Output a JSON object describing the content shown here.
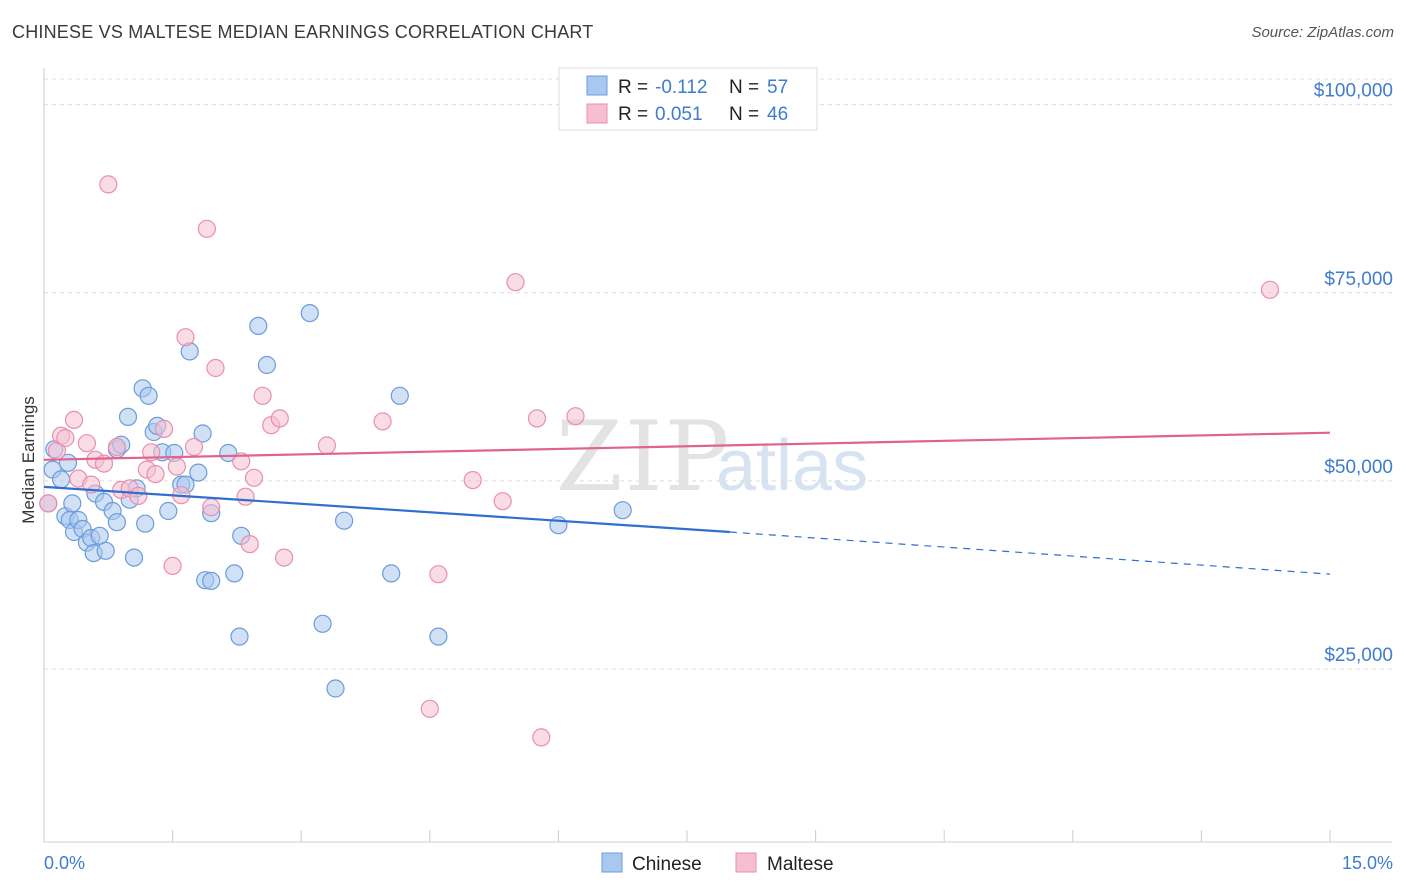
{
  "title": "CHINESE VS MALTESE MEDIAN EARNINGS CORRELATION CHART",
  "source": "Source: ZipAtlas.com",
  "watermark": {
    "part1": "ZIP",
    "part2": "atlas"
  },
  "colors": {
    "chinese_fill": "#a9c8ef",
    "chinese_stroke": "#6b9bdd",
    "chinese_line": "#2f6fcf",
    "maltese_fill": "#f6bfd1",
    "maltese_stroke": "#e98fae",
    "maltese_line": "#e0628d",
    "tick_text": "#3f7bd0",
    "grid": "#dddddd"
  },
  "chart_data": {
    "type": "scatter",
    "title": "CHINESE VS MALTESE MEDIAN EARNINGS CORRELATION CHART",
    "xlabel": "",
    "ylabel": "Median Earnings",
    "xlim": [
      0,
      15
    ],
    "ylim": [
      2000,
      107000
    ],
    "x_tick_labels": {
      "left": "0.0%",
      "right": "15.0%"
    },
    "y_ticks": [
      {
        "value": 25000,
        "label": "$25,000"
      },
      {
        "value": 50000,
        "label": "$50,000"
      },
      {
        "value": 75000,
        "label": "$75,000"
      },
      {
        "value": 100000,
        "label": "$100,000"
      }
    ],
    "legend": {
      "entries": [
        {
          "series": "Chinese",
          "r_label": "R =",
          "r_value": "-0.112",
          "n_label": "N =",
          "n_value": "57"
        },
        {
          "series": "Maltese",
          "r_label": "R =",
          "r_value": "0.051",
          "n_label": "N =",
          "n_value": "46"
        }
      ]
    },
    "series": [
      {
        "name": "Chinese",
        "trend": {
          "x0": 0,
          "y0": 49200,
          "x1": 8.0,
          "y1": 43200,
          "dash_to_x": 15,
          "dash_to_y": 37600
        },
        "points": [
          [
            0.05,
            47000
          ],
          [
            0.1,
            51500
          ],
          [
            0.12,
            54200
          ],
          [
            0.2,
            50200
          ],
          [
            0.25,
            45300
          ],
          [
            0.28,
            52400
          ],
          [
            0.3,
            44800
          ],
          [
            0.33,
            47000
          ],
          [
            0.35,
            43200
          ],
          [
            0.4,
            44800
          ],
          [
            0.45,
            43600
          ],
          [
            0.5,
            41800
          ],
          [
            0.55,
            42400
          ],
          [
            0.58,
            40400
          ],
          [
            0.6,
            48300
          ],
          [
            0.65,
            42700
          ],
          [
            0.7,
            47200
          ],
          [
            0.72,
            40700
          ],
          [
            0.8,
            46000
          ],
          [
            0.85,
            44500
          ],
          [
            0.85,
            54200
          ],
          [
            0.9,
            54800
          ],
          [
            0.98,
            58500
          ],
          [
            1.0,
            47500
          ],
          [
            1.05,
            39800
          ],
          [
            1.08,
            49000
          ],
          [
            1.15,
            62300
          ],
          [
            1.18,
            44300
          ],
          [
            1.22,
            61300
          ],
          [
            1.28,
            56500
          ],
          [
            1.32,
            57300
          ],
          [
            1.38,
            53800
          ],
          [
            1.45,
            46000
          ],
          [
            1.52,
            53700
          ],
          [
            1.6,
            49500
          ],
          [
            1.65,
            49500
          ],
          [
            1.7,
            67200
          ],
          [
            1.8,
            51100
          ],
          [
            1.85,
            56300
          ],
          [
            1.88,
            36800
          ],
          [
            1.95,
            36700
          ],
          [
            1.95,
            45700
          ],
          [
            2.15,
            53700
          ],
          [
            2.22,
            37700
          ],
          [
            2.28,
            29300
          ],
          [
            2.3,
            42700
          ],
          [
            2.5,
            70600
          ],
          [
            2.6,
            65400
          ],
          [
            3.1,
            72300
          ],
          [
            3.25,
            31000
          ],
          [
            3.4,
            22400
          ],
          [
            3.5,
            44700
          ],
          [
            4.05,
            37700
          ],
          [
            4.15,
            61300
          ],
          [
            4.6,
            29300
          ],
          [
            6.0,
            44100
          ],
          [
            6.75,
            46100
          ]
        ]
      },
      {
        "name": "Maltese",
        "trend": {
          "x0": 0,
          "y0": 52800,
          "x1": 15,
          "y1": 56400
        },
        "points": [
          [
            0.05,
            47000
          ],
          [
            0.15,
            54000
          ],
          [
            0.2,
            56000
          ],
          [
            0.25,
            55700
          ],
          [
            0.35,
            58100
          ],
          [
            0.4,
            50300
          ],
          [
            0.5,
            55000
          ],
          [
            0.55,
            49500
          ],
          [
            0.6,
            52800
          ],
          [
            0.7,
            52300
          ],
          [
            0.75,
            89400
          ],
          [
            0.85,
            54500
          ],
          [
            0.9,
            48800
          ],
          [
            1.0,
            49000
          ],
          [
            1.1,
            48000
          ],
          [
            1.2,
            51500
          ],
          [
            1.25,
            53800
          ],
          [
            1.3,
            50900
          ],
          [
            1.4,
            56900
          ],
          [
            1.5,
            38700
          ],
          [
            1.55,
            51900
          ],
          [
            1.6,
            48100
          ],
          [
            1.65,
            69100
          ],
          [
            1.75,
            54500
          ],
          [
            1.9,
            83500
          ],
          [
            1.95,
            46500
          ],
          [
            2.0,
            65000
          ],
          [
            2.3,
            52600
          ],
          [
            2.35,
            47900
          ],
          [
            2.4,
            41600
          ],
          [
            2.45,
            50400
          ],
          [
            2.55,
            61300
          ],
          [
            2.65,
            57400
          ],
          [
            2.75,
            58300
          ],
          [
            2.8,
            39800
          ],
          [
            3.3,
            54700
          ],
          [
            3.95,
            57900
          ],
          [
            4.5,
            19700
          ],
          [
            4.6,
            37600
          ],
          [
            5.0,
            50100
          ],
          [
            5.35,
            47300
          ],
          [
            5.5,
            76400
          ],
          [
            5.75,
            58300
          ],
          [
            5.8,
            15900
          ],
          [
            6.2,
            58600
          ],
          [
            14.3,
            75400
          ]
        ]
      }
    ]
  },
  "bottom_legend": {
    "chinese": "Chinese",
    "maltese": "Maltese"
  }
}
